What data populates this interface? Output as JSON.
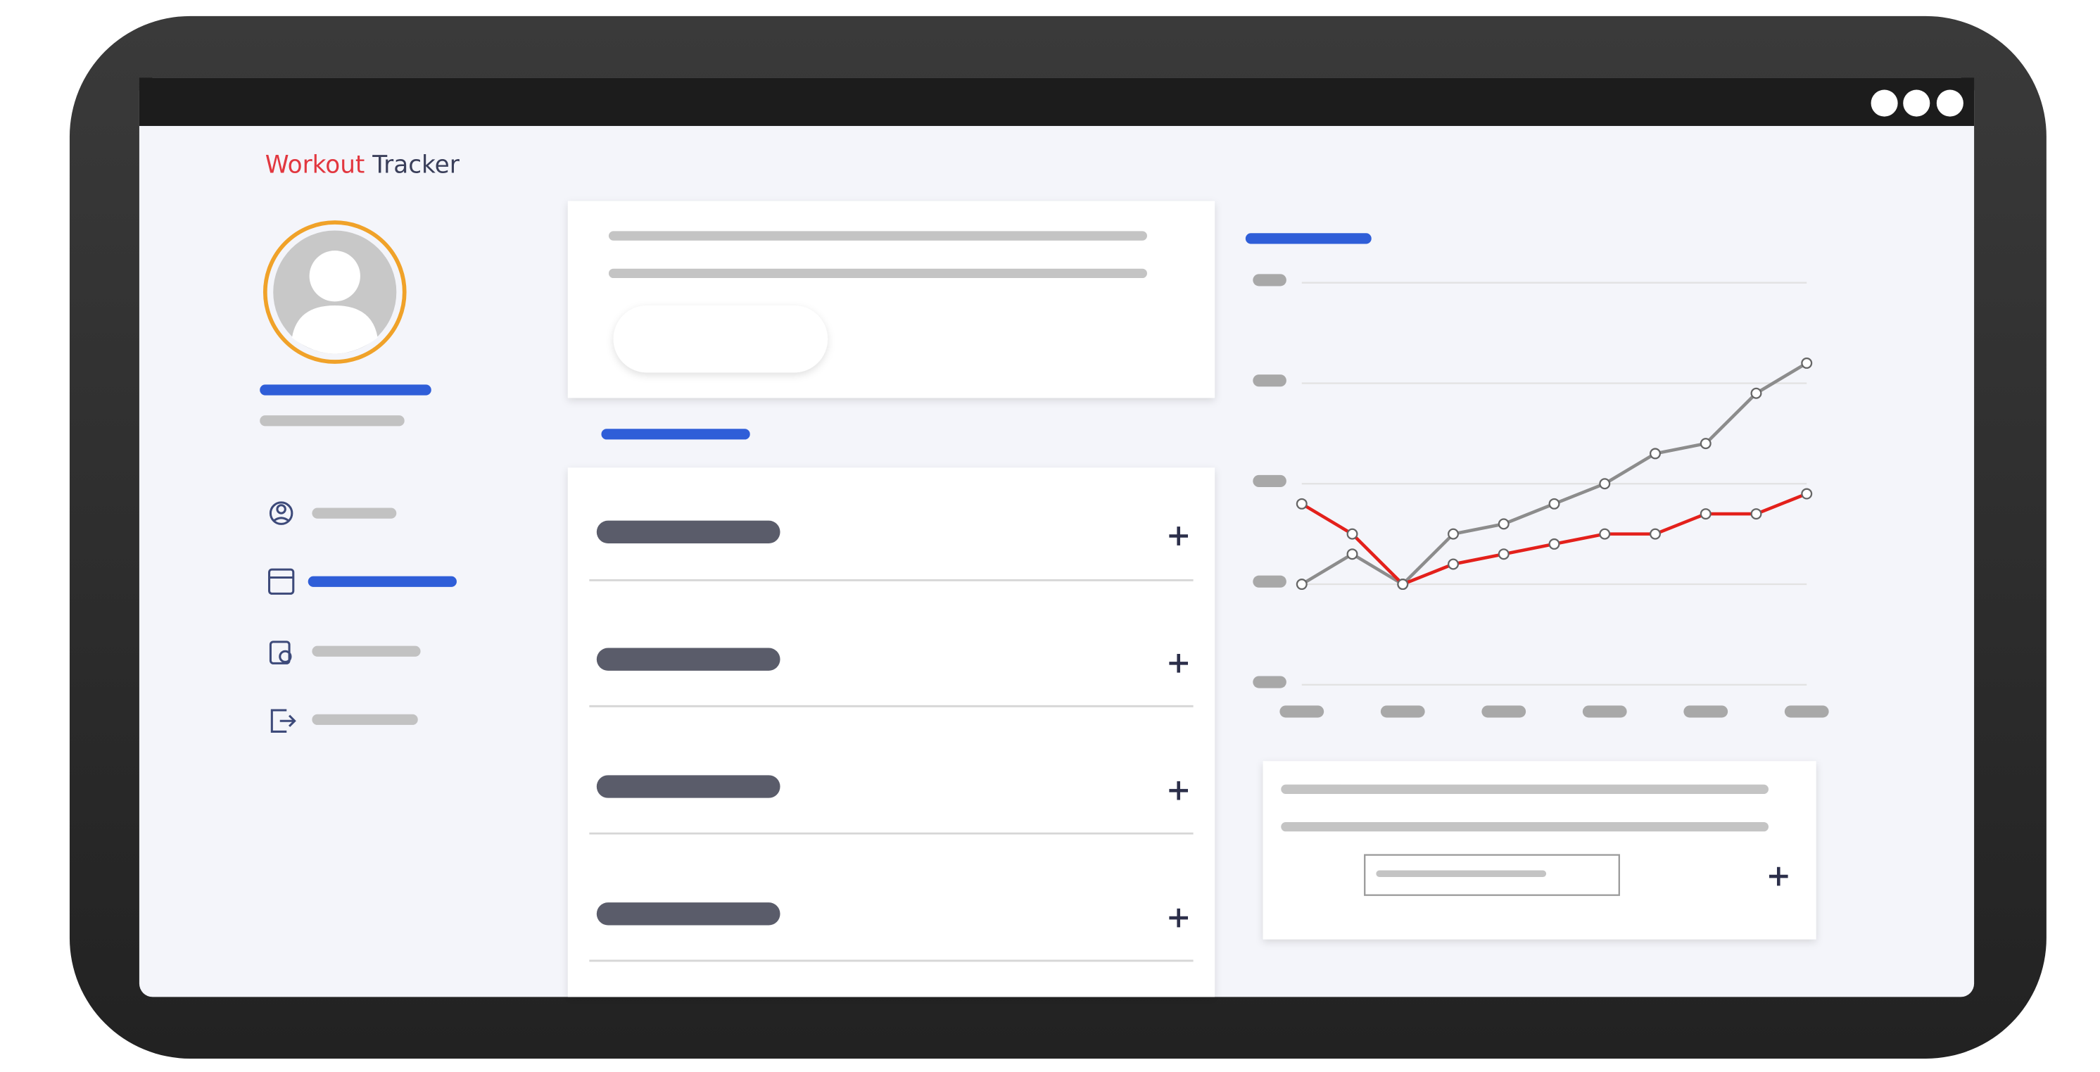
{
  "header": {
    "title_part1": "Workout",
    "title_part2": "Tracker"
  },
  "chart_data": {
    "type": "line",
    "categories": [
      null,
      null,
      null,
      null,
      null,
      null,
      null,
      null,
      null,
      null,
      null
    ],
    "series": [
      {
        "color": "#8c8c8c",
        "values": [
          1.0,
          1.3,
          1.0,
          1.5,
          1.6,
          1.8,
          2.0,
          2.3,
          2.4,
          2.9,
          3.2
        ]
      },
      {
        "color": "#e3201b",
        "values": [
          1.8,
          1.5,
          1.0,
          1.2,
          1.3,
          1.4,
          1.5,
          1.5,
          1.7,
          1.7,
          1.9
        ]
      }
    ],
    "ylim": [
      0,
      4
    ],
    "yticks": [
      0,
      1,
      2,
      3,
      4
    ],
    "grid": true
  }
}
